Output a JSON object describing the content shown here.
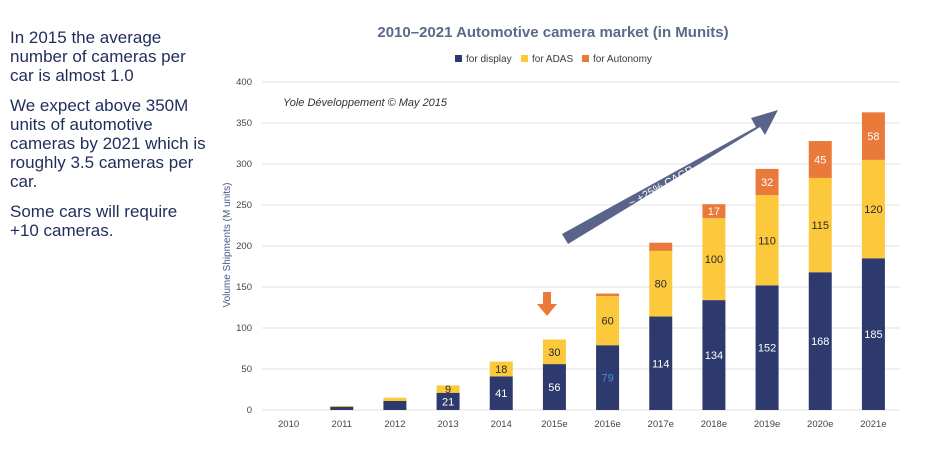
{
  "side_text": {
    "p1": "In 2015 the average number of cameras per car is almost 1.0",
    "p2": "We expect above 350M units of automotive cameras by 2021 which is roughly 3.5 cameras per car.",
    "p3": "Some cars will require +10 cameras."
  },
  "annotations": {
    "copyright": "Yole Développement © May 2015",
    "cagr": "~ +25% CAGR",
    "cagr_sub": "2015-2021"
  },
  "colors": {
    "display": "#2e3a6e",
    "adas": "#fcc83c",
    "autonomy": "#ea7a3a",
    "arrow": "#5a6488",
    "marker": "#ea7a3a",
    "highlight_label": "#4a90d9"
  },
  "chart_data": {
    "type": "bar",
    "stacked": true,
    "title": "2010–2021 Automotive camera market (in Munits)",
    "xlabel": "",
    "ylabel": "Volume Shipments (M units)",
    "ylim": [
      0,
      400
    ],
    "yticks": [
      0,
      50,
      100,
      150,
      200,
      250,
      300,
      350,
      400
    ],
    "grid": true,
    "legend_position": "top",
    "categories": [
      "2010",
      "2011",
      "2012",
      "2013",
      "2014",
      "2015e",
      "2016e",
      "2017e",
      "2018e",
      "2019e",
      "2020e",
      "2021e"
    ],
    "series": [
      {
        "name": "for display",
        "values": [
          0,
          4,
          11,
          21,
          41,
          56,
          79,
          114,
          134,
          152,
          168,
          185
        ]
      },
      {
        "name": "for ADAS",
        "values": [
          0,
          1,
          4,
          9,
          18,
          30,
          60,
          80,
          100,
          110,
          115,
          120
        ]
      },
      {
        "name": "for Autonomy",
        "values": [
          0,
          0,
          0,
          0,
          0,
          0,
          3,
          10,
          17,
          32,
          45,
          58
        ]
      }
    ],
    "data_labels": [
      [
        "",
        "",
        "",
        "21",
        "41",
        "56",
        "79",
        "114",
        "134",
        "152",
        "168",
        "185"
      ],
      [
        "",
        "",
        "",
        "9",
        "18",
        "30",
        "60",
        "80",
        "100",
        "110",
        "115",
        "120"
      ],
      [
        "",
        "",
        "",
        "",
        "",
        "",
        "",
        "",
        "17",
        "32",
        "45",
        "58"
      ]
    ],
    "marked_category": "2015e"
  }
}
